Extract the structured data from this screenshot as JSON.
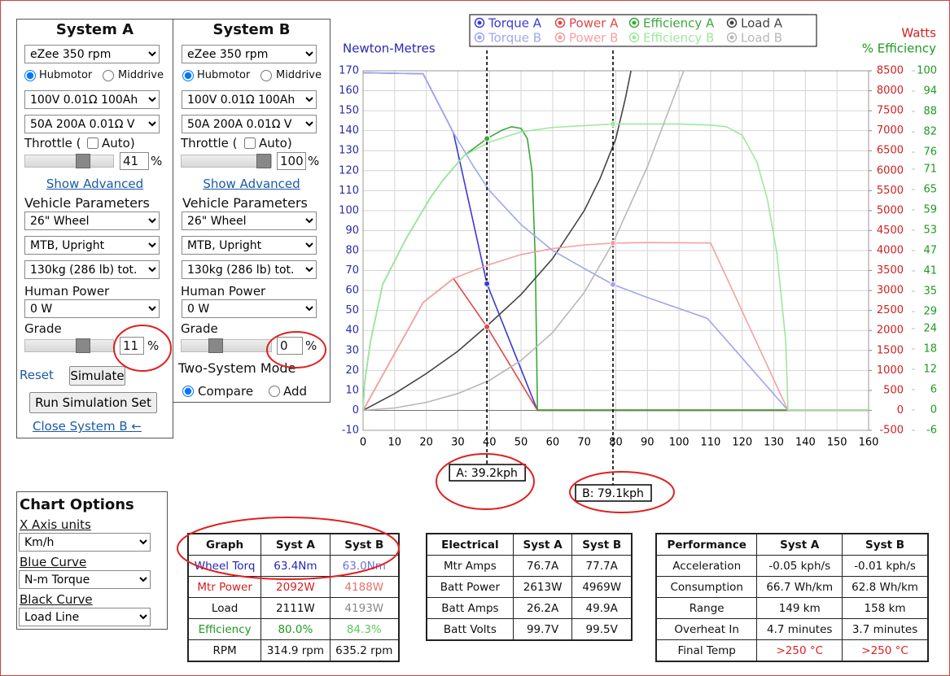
{
  "system_a": {
    "title": "System A",
    "motor": "eZee 350 rpm",
    "motor_types": [
      "Hubmotor",
      "Middrive"
    ],
    "battery": "100V 0.01Ω 100Ah",
    "controller": "50A 200A 0.01Ω V",
    "throttle_label": "Throttle (",
    "auto_label": "Auto)",
    "throttle": "41",
    "unit": "%",
    "show_advanced": "Show Advanced",
    "vehicle_heading": "Vehicle Parameters",
    "wheel": "26\"  Wheel",
    "frame": "MTB, Upright",
    "weight": "130kg (286 lb) tot.",
    "human_power_label": "Human Power",
    "human_power": "0 W",
    "grade_label": "Grade",
    "grade": "11",
    "reset": "Reset",
    "simulate": "Simulate",
    "run_set": "Run Simulation Set",
    "close_b": "Close System B ←"
  },
  "system_b": {
    "title": "System B",
    "motor": "eZee 350 rpm",
    "motor_types": [
      "Hubmotor",
      "Middrive"
    ],
    "battery": "100V 0.01Ω 100Ah",
    "controller": "50A 200A 0.01Ω V",
    "throttle_label": "Throttle (",
    "auto_label": "Auto)",
    "throttle": "100",
    "unit": "%",
    "show_advanced": "Show Advanced",
    "vehicle_heading": "Vehicle Parameters",
    "wheel": "26\"  Wheel",
    "frame": "MTB, Upright",
    "weight": "130kg (286 lb) tot.",
    "human_power_label": "Human Power",
    "human_power": "0 W",
    "grade_label": "Grade",
    "grade": "0",
    "mode_heading": "Two-System Mode",
    "modes": [
      "Compare",
      "Add"
    ]
  },
  "chart_options": {
    "title": "Chart Options",
    "x_axis_label": "X Axis units",
    "x_axis": "Km/h",
    "blue_label": "Blue Curve",
    "blue": "N-m Torque",
    "black_label": "Black Curve",
    "black": "Load Line"
  },
  "chart": {
    "type": "line",
    "y_title": "Newton-Metres",
    "y2_title": "Watts",
    "y3_title": "% Efficiency",
    "xlim": [
      0,
      160
    ],
    "xticks": [
      0,
      10,
      20,
      30,
      40,
      50,
      60,
      70,
      80,
      90,
      100,
      110,
      120,
      130,
      140,
      150,
      160
    ],
    "ylim": [
      -10,
      170
    ],
    "yticks": [
      -10,
      0,
      10,
      20,
      30,
      40,
      50,
      60,
      70,
      80,
      90,
      100,
      110,
      120,
      130,
      140,
      150,
      160,
      170
    ],
    "y2lim": [
      -500,
      8500
    ],
    "y2ticks": [
      -500,
      0,
      500,
      1000,
      1500,
      2000,
      2500,
      3000,
      3500,
      4000,
      4500,
      5000,
      5500,
      6000,
      6500,
      7000,
      7500,
      8000,
      8500
    ],
    "y3lim": [
      -6,
      100
    ],
    "y3ticks": [
      -6,
      0,
      6,
      12,
      18,
      24,
      29,
      35,
      41,
      47,
      53,
      59,
      65,
      71,
      76,
      82,
      88,
      94,
      100
    ],
    "grid": true,
    "series": [
      {
        "name": "Torque A",
        "color": "#3a3ad8",
        "axis": "y",
        "x": [
          0,
          19,
          28.6,
          39.2,
          55.2,
          160
        ],
        "values": [
          169,
          168.5,
          139,
          63.4,
          0,
          0
        ],
        "dot": 63.4
      },
      {
        "name": "Power A",
        "color": "#e04848",
        "axis": "y2",
        "x": [
          0,
          19,
          28.6,
          39.2,
          55.2,
          160
        ],
        "values": [
          0,
          2700,
          3300,
          2092,
          0,
          0
        ],
        "dot": 2092
      },
      {
        "name": "Efficiency A",
        "color": "#3aa83a",
        "axis": "y3",
        "x": [
          0,
          0.5,
          2.3,
          6.2,
          13.9,
          21.6,
          25.5,
          32,
          39.2,
          44,
          47,
          50,
          52,
          53.5,
          54.5,
          55.2,
          160
        ],
        "values": [
          0,
          8,
          20,
          37,
          51,
          63,
          68,
          75,
          80,
          82.5,
          83.5,
          83,
          80,
          70,
          45,
          0,
          0
        ],
        "dot": 80.0
      },
      {
        "name": "Load A",
        "color": "#444444",
        "axis": "y2",
        "x": [
          0,
          10,
          20,
          30,
          39.2,
          50,
          60,
          70,
          75,
          80,
          83,
          84.8
        ],
        "values": [
          0,
          420,
          920,
          1480,
          2111,
          2900,
          3800,
          5000,
          5800,
          6800,
          7800,
          8500
        ]
      },
      {
        "name": "Torque B",
        "color": "#a0a6ee",
        "axis": "y",
        "x": [
          0,
          19,
          28.6,
          35,
          40,
          50,
          60,
          70,
          79.1,
          90,
          100,
          109,
          134.5,
          160
        ],
        "values": [
          169,
          168.5,
          139,
          122,
          110,
          93,
          80,
          71,
          63,
          56.5,
          51,
          46,
          0,
          0
        ],
        "dot": 63.0
      },
      {
        "name": "Power B",
        "color": "#f3a2a2",
        "axis": "y2",
        "x": [
          0,
          19,
          28.6,
          40,
          50,
          60,
          70,
          79.1,
          90,
          110,
          134.5,
          160
        ],
        "values": [
          0,
          2700,
          3300,
          3650,
          3900,
          4050,
          4140,
          4188,
          4200,
          4190,
          0,
          0
        ],
        "dot": 4188
      },
      {
        "name": "Efficiency B",
        "color": "#9ee89e",
        "axis": "y3",
        "x": [
          0,
          0.5,
          2.3,
          6.2,
          13.9,
          21.6,
          25.5,
          32,
          40,
          50,
          60,
          79.1,
          100,
          110,
          115,
          120,
          124.7,
          128,
          131,
          133.8,
          134.5,
          160
        ],
        "values": [
          0,
          8,
          20,
          37,
          51,
          63,
          68,
          75,
          79,
          82,
          83.3,
          84.3,
          84.3,
          84,
          83.5,
          81,
          73,
          62,
          46,
          20,
          0,
          0
        ],
        "dot": 84.3
      },
      {
        "name": "Load B",
        "color": "#b8b8b8",
        "axis": "y2",
        "x": [
          0,
          10,
          20,
          30,
          40,
          50,
          60,
          70,
          79.1,
          90,
          101.5
        ],
        "values": [
          0,
          60,
          200,
          420,
          750,
          1250,
          1950,
          2950,
          4193,
          6100,
          8500
        ]
      }
    ],
    "markers": [
      {
        "x": 39.2,
        "label": "A: 39.2kph"
      },
      {
        "x": 79.1,
        "label": "B: 79.1kph"
      }
    ]
  },
  "tables": {
    "graph": {
      "headers": [
        "Graph",
        "Syst A",
        "Syst B"
      ],
      "rows": [
        [
          "Wheel Torq",
          "63.4Nm",
          "63.0Nm"
        ],
        [
          "Mtr Power",
          "2092W",
          "4188W"
        ],
        [
          "Load",
          "2111W",
          "4193W"
        ],
        [
          "Efficiency",
          "80.0%",
          "84.3%"
        ],
        [
          "RPM",
          "314.9 rpm",
          "635.2 rpm"
        ]
      ]
    },
    "electrical": {
      "headers": [
        "Electrical",
        "Syst A",
        "Syst B"
      ],
      "rows": [
        [
          "Mtr Amps",
          "76.7A",
          "77.7A"
        ],
        [
          "Batt Power",
          "2613W",
          "4969W"
        ],
        [
          "Batt Amps",
          "26.2A",
          "49.9A"
        ],
        [
          "Batt Volts",
          "99.7V",
          "99.5V"
        ]
      ]
    },
    "performance": {
      "headers": [
        "Performance",
        "Syst A",
        "Syst B"
      ],
      "rows": [
        [
          "Acceleration",
          "-0.05 kph/s",
          "-0.01 kph/s"
        ],
        [
          "Consumption",
          "66.7 Wh/km",
          "62.8 Wh/km"
        ],
        [
          "Range",
          "149 km",
          "158 km"
        ],
        [
          "Overheat In",
          "4.7 minutes",
          "3.7 minutes"
        ],
        [
          "Final Temp",
          ">250 °C",
          ">250 °C"
        ]
      ]
    }
  }
}
